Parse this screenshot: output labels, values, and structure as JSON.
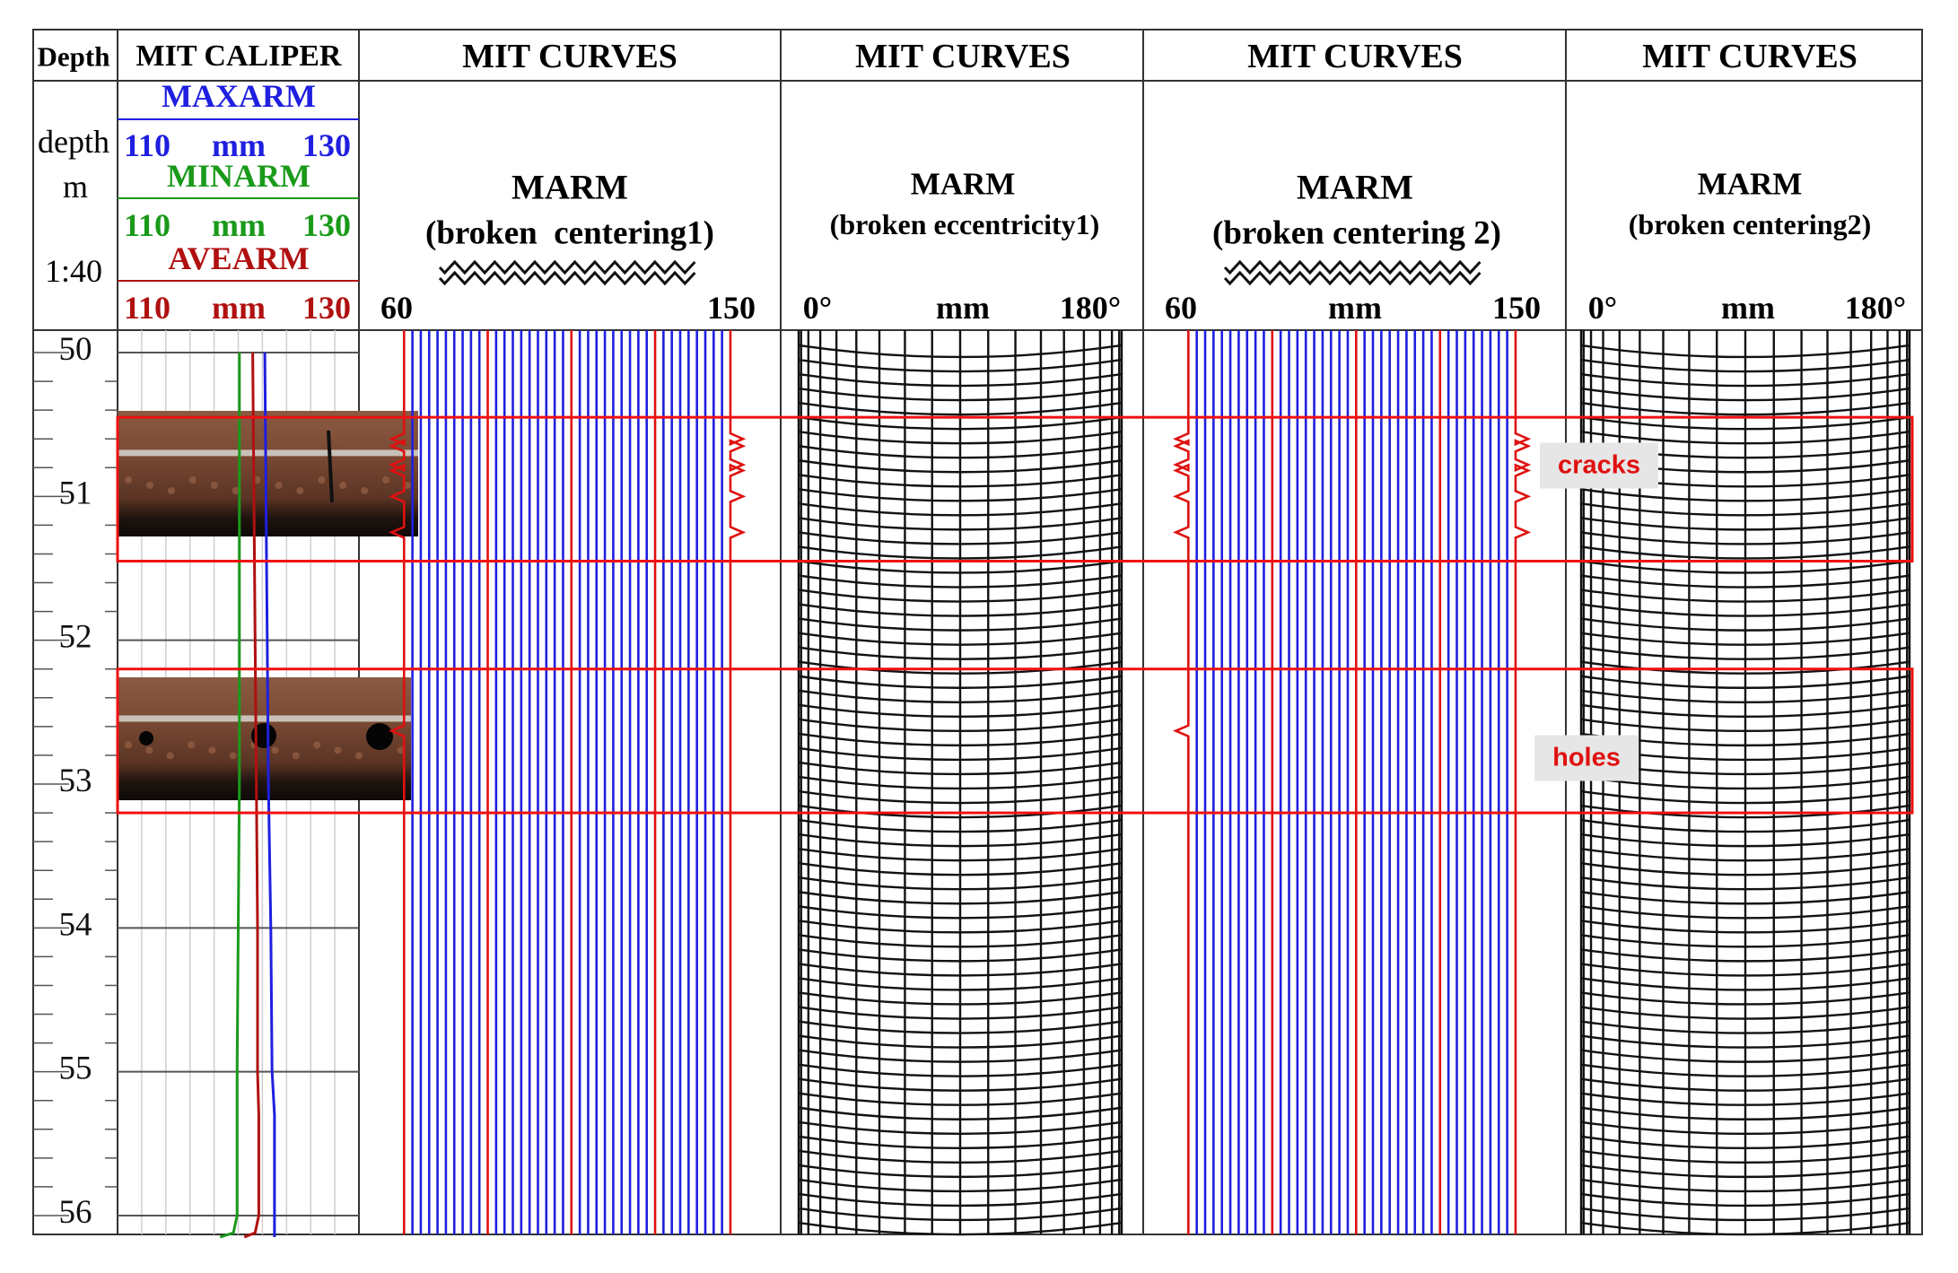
{
  "header": {
    "depth_col": "Depth",
    "caliper_col": "MIT CALIPER",
    "curves_col_1": "MIT CURVES",
    "curves_col_2": "MIT CURVES",
    "curves_col_3": "MIT CURVES",
    "curves_col_4": "MIT CURVES"
  },
  "depth_units": {
    "line1": "depth",
    "line2": "m",
    "line3": "1:40"
  },
  "caliper": {
    "maxarm": {
      "name": "MAXARM",
      "min": "110",
      "unit": "mm",
      "max": "130",
      "color": "#1f1fe0"
    },
    "minarm": {
      "name": "MINARM",
      "min": "110",
      "unit": "mm",
      "max": "130",
      "color": "#1a9a1a"
    },
    "avearm": {
      "name": "AVEARM",
      "min": "110",
      "unit": "mm",
      "max": "130",
      "color": "#b01010"
    }
  },
  "tracks": [
    {
      "title": "MARM",
      "subtitle": "(broken  centering1)",
      "scale_left": "60",
      "scale_mid": "",
      "scale_right": "150",
      "style": "arms",
      "symbol": "break-icon"
    },
    {
      "title": "MARM",
      "subtitle": "(broken eccentricity1)",
      "scale_left": "0°",
      "scale_mid": "mm",
      "scale_right": "180°",
      "style": "cylinder"
    },
    {
      "title": "MARM",
      "subtitle": "(broken centering 2)",
      "scale_left": "60",
      "scale_mid": "mm",
      "scale_right": "150",
      "style": "arms",
      "symbol": "break-icon"
    },
    {
      "title": "MARM",
      "subtitle": "(broken centering2)",
      "scale_left": "0°",
      "scale_mid": "mm",
      "scale_right": "180°",
      "style": "cylinder"
    }
  ],
  "annotations": {
    "cracks": {
      "label": "cracks",
      "depth_from": 50.45,
      "depth_to": 51.45
    },
    "holes": {
      "label": "holes",
      "depth_from": 52.2,
      "depth_to": 53.2
    }
  },
  "chart_data": {
    "type": "line",
    "title": "",
    "ylabel": "depth m",
    "yscale": "1:40",
    "ylim": [
      50,
      56.15
    ],
    "depth_ticks": [
      "50",
      "51",
      "52",
      "53",
      "54",
      "55",
      "56"
    ],
    "series": [
      {
        "name": "MAXARM",
        "color": "#1f1fe0",
        "unit": "mm",
        "xlim": [
          110,
          130
        ],
        "depth": [
          50,
          51,
          52,
          53,
          54,
          55,
          55.3,
          56,
          56.15
        ],
        "values": [
          122.2,
          122.3,
          122.4,
          122.5,
          122.7,
          122.8,
          123.0,
          123.0,
          123.0
        ]
      },
      {
        "name": "MINARM",
        "color": "#1a9a1a",
        "unit": "mm",
        "xlim": [
          110,
          130
        ],
        "depth": [
          50,
          51,
          52,
          53,
          54,
          55,
          55.6,
          56,
          56.12,
          56.15
        ],
        "values": [
          120.1,
          120.1,
          120.1,
          120.1,
          120.0,
          119.9,
          119.9,
          119.9,
          119.6,
          118.5
        ]
      },
      {
        "name": "AVEARM",
        "color": "#b01010",
        "unit": "mm",
        "xlim": [
          110,
          130
        ],
        "depth": [
          50,
          51,
          52,
          53,
          54,
          55,
          55.3,
          56,
          56.12,
          56.15
        ],
        "values": [
          121.2,
          121.3,
          121.4,
          121.5,
          121.6,
          121.6,
          121.7,
          121.7,
          121.4,
          120.5
        ]
      }
    ],
    "multi_arm": {
      "arm_count": 40,
      "xlim": [
        60,
        150
      ],
      "arm_spacing_mm": 2.25,
      "red_arm_index": [
        0,
        10,
        20,
        30,
        39
      ],
      "crack_depths": [
        50.6,
        50.65,
        50.78,
        50.82,
        51.0,
        51.25
      ],
      "hole_depths": [
        52.63
      ]
    },
    "cylinder": {
      "xlim_deg": [
        0,
        180
      ],
      "ring_spacing_m": 0.1,
      "meridians": 18
    }
  }
}
